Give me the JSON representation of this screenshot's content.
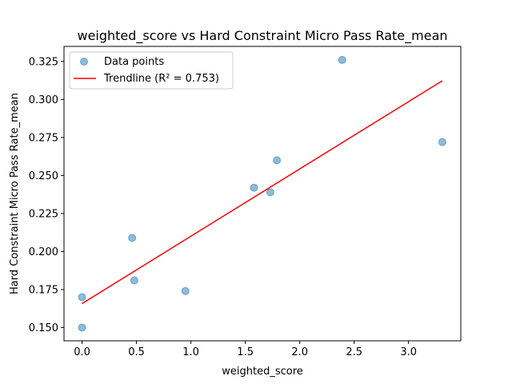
{
  "chart_data": {
    "type": "scatter",
    "title": "weighted_score vs Hard Constraint Micro Pass Rate_mean",
    "xlabel": "weighted_score",
    "ylabel": "Hard Constraint Micro Pass Rate_mean",
    "xlim": [
      -0.166,
      3.48
    ],
    "ylim": [
      0.1413,
      0.3349
    ],
    "xticks": [
      0.0,
      0.5,
      1.0,
      1.5,
      2.0,
      2.5,
      3.0
    ],
    "xtick_labels": [
      "0.0",
      "0.5",
      "1.0",
      "1.5",
      "2.0",
      "2.5",
      "3.0"
    ],
    "yticks": [
      0.15,
      0.175,
      0.2,
      0.225,
      0.25,
      0.275,
      0.3,
      0.325
    ],
    "ytick_labels": [
      "0.150",
      "0.175",
      "0.200",
      "0.225",
      "0.250",
      "0.275",
      "0.300",
      "0.325"
    ],
    "grid": false,
    "legend": {
      "placement": "top-left"
    },
    "series": [
      {
        "name": "Data points",
        "kind": "scatter",
        "color": "#1f77b4",
        "points": [
          {
            "x": 0.0,
            "y": 0.15
          },
          {
            "x": 0.0,
            "y": 0.17
          },
          {
            "x": 0.46,
            "y": 0.209
          },
          {
            "x": 0.48,
            "y": 0.181
          },
          {
            "x": 0.95,
            "y": 0.174
          },
          {
            "x": 1.58,
            "y": 0.242
          },
          {
            "x": 1.73,
            "y": 0.239
          },
          {
            "x": 1.79,
            "y": 0.26
          },
          {
            "x": 2.39,
            "y": 0.326
          },
          {
            "x": 3.31,
            "y": 0.272
          }
        ]
      },
      {
        "name": "Trendline (R² = 0.753)",
        "kind": "line",
        "color": "#ff0000",
        "points": [
          {
            "x": 0.0,
            "y": 0.1658
          },
          {
            "x": 3.31,
            "y": 0.3123
          }
        ]
      }
    ]
  }
}
